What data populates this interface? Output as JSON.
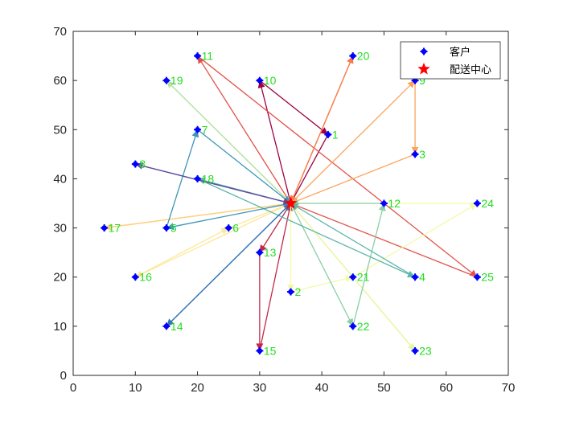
{
  "chart_data": {
    "type": "scatter",
    "title": "",
    "xlabel": "",
    "ylabel": "",
    "xlim": [
      0,
      70
    ],
    "ylim": [
      0,
      70
    ],
    "xticks": [
      0,
      10,
      20,
      30,
      40,
      50,
      60,
      70
    ],
    "yticks": [
      0,
      10,
      20,
      30,
      40,
      50,
      60,
      70
    ],
    "grid": false,
    "legend_position": "top-right",
    "legend": [
      {
        "label": "客户",
        "marker": "plus-filled",
        "color": "#0000ff"
      },
      {
        "label": "配送中心",
        "marker": "star",
        "color": "#ff0000"
      }
    ],
    "depot": {
      "x": 35,
      "y": 35
    },
    "customers": [
      {
        "id": "1",
        "x": 41,
        "y": 49
      },
      {
        "id": "2",
        "x": 35,
        "y": 17
      },
      {
        "id": "3",
        "x": 55,
        "y": 45
      },
      {
        "id": "4",
        "x": 55,
        "y": 20
      },
      {
        "id": "5",
        "x": 15,
        "y": 30
      },
      {
        "id": "6",
        "x": 25,
        "y": 30
      },
      {
        "id": "7",
        "x": 20,
        "y": 50
      },
      {
        "id": "8",
        "x": 10,
        "y": 43
      },
      {
        "id": "9",
        "x": 55,
        "y": 60
      },
      {
        "id": "10",
        "x": 30,
        "y": 60
      },
      {
        "id": "11",
        "x": 20,
        "y": 65
      },
      {
        "id": "12",
        "x": 50,
        "y": 35
      },
      {
        "id": "13",
        "x": 30,
        "y": 25
      },
      {
        "id": "14",
        "x": 15,
        "y": 10
      },
      {
        "id": "15",
        "x": 30,
        "y": 5
      },
      {
        "id": "16",
        "x": 10,
        "y": 20
      },
      {
        "id": "17",
        "x": 5,
        "y": 30
      },
      {
        "id": "18",
        "x": 20,
        "y": 40
      },
      {
        "id": "19",
        "x": 15,
        "y": 60
      },
      {
        "id": "20",
        "x": 45,
        "y": 65
      },
      {
        "id": "21",
        "x": 45,
        "y": 20
      },
      {
        "id": "22",
        "x": 45,
        "y": 10
      },
      {
        "id": "23",
        "x": 55,
        "y": 5
      },
      {
        "id": "24",
        "x": 65,
        "y": 35
      },
      {
        "id": "25",
        "x": 65,
        "y": 20
      }
    ],
    "routes": [
      {
        "color": "#9e0142",
        "path": [
          "depot",
          "10",
          "1",
          "depot"
        ]
      },
      {
        "color": "#c2294a",
        "path": [
          "depot",
          "13",
          "15",
          "depot"
        ]
      },
      {
        "color": "#e1524a",
        "path": [
          "depot",
          "11",
          "25",
          "depot"
        ]
      },
      {
        "color": "#f57d4a",
        "path": [
          "depot",
          "20",
          "depot"
        ]
      },
      {
        "color": "#fba45c",
        "path": [
          "depot",
          "9",
          "3",
          "depot"
        ]
      },
      {
        "color": "#fdd07f",
        "path": [
          "depot",
          "17",
          "depot"
        ]
      },
      {
        "color": "#fde89a",
        "path": [
          "depot",
          "16",
          "6",
          "depot"
        ]
      },
      {
        "color": "#f4f9a9",
        "path": [
          "depot",
          "2",
          "21",
          "24",
          "depot"
        ]
      },
      {
        "color": "#e8f69b",
        "path": [
          "depot",
          "23",
          "depot"
        ]
      },
      {
        "color": "#b7e2a1",
        "path": [
          "depot",
          "19",
          "depot"
        ]
      },
      {
        "color": "#88cfa4",
        "path": [
          "depot",
          "22",
          "12",
          "depot"
        ]
      },
      {
        "color": "#5cb7a9",
        "path": [
          "depot",
          "18",
          "4",
          "depot"
        ]
      },
      {
        "color": "#3d95b8",
        "path": [
          "depot",
          "5",
          "7",
          "depot"
        ]
      },
      {
        "color": "#3575b5",
        "path": [
          "depot",
          "14",
          "depot"
        ]
      },
      {
        "color": "#5e4fa2",
        "path": [
          "depot",
          "8",
          "depot"
        ]
      }
    ]
  }
}
